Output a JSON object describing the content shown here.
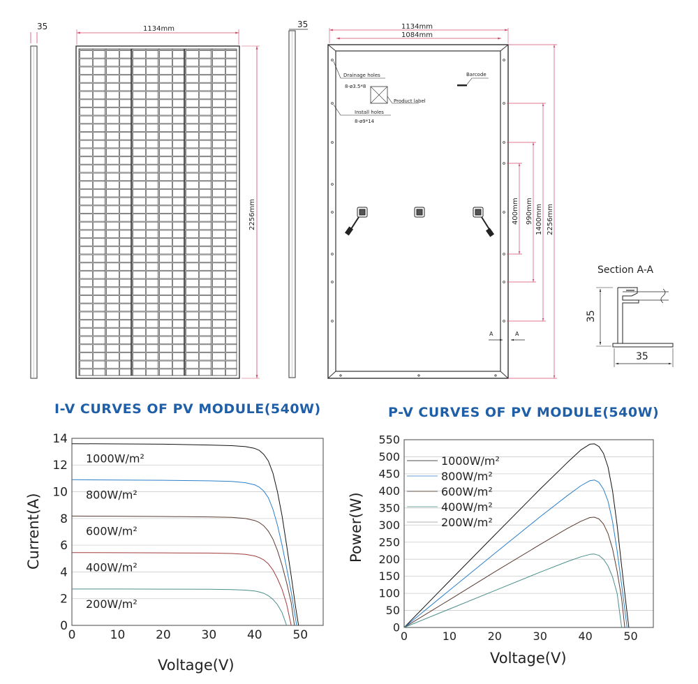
{
  "drawing": {
    "side_thickness_left": "35",
    "front_width": "1134mm",
    "front_height": "2256mm",
    "side_thickness_right": "35",
    "back_width_outer": "1134mm",
    "back_width_inner": "1084mm",
    "drainage_holes": "Drainage holes",
    "drainage_spec": "8-ø3.5*8",
    "product_label": "Product label",
    "install_holes": "Install holes",
    "install_spec": "8-ø9*14",
    "barcode": "Barcode",
    "dim_400": "400mm",
    "dim_990": "990mm",
    "dim_1400": "1400mm",
    "dim_2256": "2256mm",
    "section_marker": "A",
    "section_title": "Section A-A",
    "section_height": "35",
    "section_width": "35"
  },
  "chart_data": [
    {
      "type": "line",
      "title": "I-V CURVES OF PV MODULE(540W)",
      "xlabel": "Voltage(V)",
      "ylabel": "Current(A)",
      "xlim": [
        0,
        55
      ],
      "ylim": [
        0,
        14
      ],
      "xticks": [
        "0",
        "10",
        "20",
        "30",
        "40",
        "50"
      ],
      "yticks": [
        "0",
        "2",
        "4",
        "6",
        "8",
        "10",
        "12",
        "14"
      ],
      "grid": "horizontal",
      "series": [
        {
          "name": "1000W/m²",
          "color": "#111111",
          "isc": 13.6,
          "voc": 49.6,
          "x": [
            0,
            10,
            20,
            30,
            35,
            38,
            40,
            41,
            42,
            43,
            44,
            45,
            46,
            47,
            48,
            49,
            49.6
          ],
          "y": [
            13.6,
            13.58,
            13.56,
            13.5,
            13.45,
            13.38,
            13.25,
            13.1,
            12.8,
            12.3,
            11.4,
            10.0,
            8.2,
            6.0,
            3.7,
            1.3,
            0
          ]
        },
        {
          "name": "800W/m²",
          "color": "#2a7fc9",
          "isc": 10.9,
          "voc": 49.2,
          "x": [
            0,
            10,
            20,
            30,
            35,
            38,
            40,
            41,
            42,
            43,
            44,
            45,
            46,
            47,
            48,
            49.2
          ],
          "y": [
            10.9,
            10.88,
            10.86,
            10.82,
            10.77,
            10.68,
            10.52,
            10.35,
            10.05,
            9.55,
            8.7,
            7.5,
            6.0,
            4.3,
            2.5,
            0
          ]
        },
        {
          "name": "600W/m²",
          "color": "#5a3a30",
          "isc": 8.18,
          "voc": 48.7,
          "x": [
            0,
            10,
            20,
            30,
            35,
            38,
            40,
            41,
            42,
            43,
            44,
            45,
            46,
            47,
            48,
            48.7
          ],
          "y": [
            8.18,
            8.17,
            8.15,
            8.12,
            8.08,
            8.0,
            7.85,
            7.7,
            7.45,
            7.05,
            6.45,
            5.6,
            4.5,
            3.2,
            1.7,
            0
          ]
        },
        {
          "name": "400W/m²",
          "color": "#a33b3b",
          "isc": 5.45,
          "voc": 48.0,
          "x": [
            0,
            10,
            20,
            30,
            35,
            38,
            40,
            41,
            42,
            43,
            44,
            45,
            46,
            47,
            48
          ],
          "y": [
            5.45,
            5.44,
            5.43,
            5.41,
            5.38,
            5.32,
            5.2,
            5.08,
            4.9,
            4.6,
            4.15,
            3.5,
            2.7,
            1.6,
            0
          ]
        },
        {
          "name": "200W/m²",
          "color": "#4a8f8a",
          "isc": 2.72,
          "voc": 47.0,
          "x": [
            0,
            10,
            20,
            30,
            35,
            38,
            40,
            41,
            42,
            43,
            44,
            45,
            46,
            47
          ],
          "y": [
            2.72,
            2.72,
            2.71,
            2.7,
            2.68,
            2.64,
            2.57,
            2.5,
            2.4,
            2.22,
            1.95,
            1.55,
            0.95,
            0
          ]
        }
      ]
    },
    {
      "type": "line",
      "title": "P-V CURVES OF PV MODULE(540W)",
      "xlabel": "Voltage(V)",
      "ylabel": "Power(W)",
      "xlim": [
        0,
        55
      ],
      "ylim": [
        0,
        550
      ],
      "xticks": [
        "0",
        "10",
        "20",
        "30",
        "40",
        "50"
      ],
      "yticks": [
        "0",
        "50",
        "100",
        "150",
        "200",
        "250",
        "300",
        "350",
        "400",
        "450",
        "500",
        "550"
      ],
      "grid": "horizontal",
      "legend": "top-left",
      "series": [
        {
          "name": "1000W/m²",
          "color": "#111111",
          "x": [
            0,
            10,
            20,
            30,
            36,
            39,
            41,
            42,
            43,
            44,
            45,
            46,
            47,
            48,
            49,
            49.6
          ],
          "y": [
            0,
            136,
            271,
            405,
            483,
            520,
            537,
            538,
            530,
            510,
            470,
            400,
            300,
            180,
            65,
            0
          ]
        },
        {
          "name": "800W/m²",
          "color": "#2a7fc9",
          "x": [
            0,
            10,
            20,
            30,
            36,
            39,
            41,
            42,
            43,
            44,
            45,
            46,
            47,
            48,
            49.2
          ],
          "y": [
            0,
            109,
            217,
            324,
            386,
            415,
            430,
            432,
            425,
            405,
            370,
            310,
            225,
            125,
            0
          ]
        },
        {
          "name": "600W/m²",
          "color": "#5a3a30",
          "x": [
            0,
            10,
            20,
            30,
            36,
            39,
            41,
            42,
            43,
            44,
            45,
            46,
            47,
            48,
            48.7
          ],
          "y": [
            0,
            81,
            163,
            243,
            290,
            311,
            322,
            323,
            318,
            303,
            275,
            230,
            165,
            85,
            0
          ]
        },
        {
          "name": "400W/m²",
          "color": "#4a8f8a",
          "x": [
            0,
            10,
            20,
            30,
            36,
            39,
            41,
            42,
            43,
            44,
            45,
            46,
            47,
            48
          ],
          "y": [
            0,
            54,
            108,
            162,
            193,
            207,
            214,
            215,
            211,
            200,
            180,
            148,
            100,
            0
          ]
        },
        {
          "name": "200W/m²",
          "color": "#999999",
          "x": [],
          "y": []
        }
      ]
    }
  ]
}
